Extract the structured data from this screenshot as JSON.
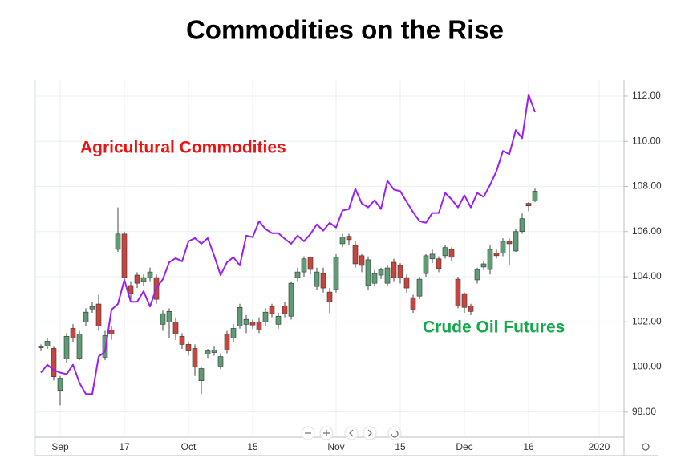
{
  "chart_data": {
    "type": "candlestick",
    "title": "Commodities on the Rise",
    "categories": [
      null,
      null,
      null,
      "Sep",
      null,
      null,
      null,
      null,
      null,
      null,
      null,
      null,
      null,
      "17",
      null,
      null,
      null,
      null,
      null,
      null,
      null,
      null,
      null,
      "Oct",
      null,
      null,
      null,
      null,
      null,
      null,
      null,
      null,
      null,
      "15",
      null,
      null,
      null,
      null,
      null,
      null,
      null,
      null,
      null,
      null,
      null,
      null,
      "Nov",
      null,
      null,
      null,
      null,
      null,
      null,
      null,
      null,
      null,
      "15",
      null,
      null,
      null,
      null,
      null,
      null,
      null,
      null,
      null,
      "Dec",
      null,
      null,
      null,
      null,
      null,
      null,
      null,
      null,
      null,
      "16",
      null,
      null,
      null,
      null,
      null,
      null,
      null,
      null,
      null,
      null,
      "2020"
    ],
    "ylim": [
      96.89,
      112.71
    ],
    "yticks": [
      {
        "value": 98,
        "label": "98.00"
      },
      {
        "value": 100,
        "label": "100.00"
      },
      {
        "value": 102,
        "label": "102.00"
      },
      {
        "value": 104,
        "label": "104.00"
      },
      {
        "value": 106,
        "label": "106.00"
      },
      {
        "value": 108,
        "label": "108.00"
      },
      {
        "value": 110,
        "label": "110.00"
      },
      {
        "value": 112,
        "label": "112.00"
      }
    ],
    "grid": true,
    "series": [
      {
        "name": "Agricultural Commodities",
        "type": "line",
        "color": "#9b1ff0",
        "label_color": "#ee1111",
        "values": [
          99.75,
          100.1,
          99.86,
          99.75,
          99.68,
          100.1,
          99.3,
          98.8,
          98.8,
          100.46,
          100.68,
          102.54,
          102.79,
          103.86,
          102.89,
          102.89,
          103.36,
          102.68,
          103.5,
          103.89,
          104.64,
          104.82,
          104.68,
          105.57,
          105.71,
          105.46,
          105.71,
          104.93,
          104.07,
          104.64,
          104.86,
          104.5,
          105.82,
          105.75,
          106.46,
          106.11,
          105.93,
          105.93,
          105.68,
          105.46,
          105.82,
          105.57,
          105.89,
          106.32,
          106.04,
          106.39,
          106.18,
          106.93,
          107.0,
          107.89,
          107.25,
          107.07,
          107.39,
          107.0,
          108.25,
          107.86,
          107.79,
          107.32,
          106.86,
          106.46,
          106.39,
          106.82,
          106.82,
          107.71,
          107.43,
          107.07,
          107.61,
          107.07,
          107.71,
          107.54,
          108.07,
          108.68,
          109.57,
          109.43,
          110.5,
          110.14,
          112.07,
          111.29,
          null,
          null,
          null,
          null,
          null,
          null,
          null,
          null,
          null,
          null
        ]
      },
      {
        "name": "Crude Oil Futures",
        "type": "candlestick",
        "up_color": "#5e9c76",
        "down_color": "#c8453f",
        "label_color": "#16a84c",
        "open": [
          100.86,
          100.93,
          100.82,
          98.96,
          100.36,
          101.71,
          100.39,
          102.0,
          102.57,
          102.79,
          100.43,
          101.64,
          105.21,
          105.89,
          103.61,
          104.07,
          103.79,
          103.96,
          103.96,
          101.89,
          102.0,
          102.0,
          101.36,
          101.0,
          100.82,
          99.39,
          100.57,
          100.64,
          100.04,
          101.46,
          101.29,
          101.82,
          101.89,
          102.0,
          102.0,
          102.0,
          102.68,
          101.89,
          102.71,
          102.25,
          103.96,
          104.21,
          104.86,
          103.57,
          104.14,
          103.32,
          103.43,
          105.46,
          105.79,
          105.39,
          104.93,
          103.61,
          103.71,
          104.07,
          103.71,
          104.64,
          104.5,
          103.96,
          103.07,
          103.14,
          104.14,
          104.79,
          104.79,
          104.93,
          105.21,
          103.89,
          103.25,
          102.71,
          103.86,
          104.43,
          104.32,
          105.04,
          105.04,
          105.57,
          105.14,
          106.0,
          107.25,
          107.36,
          null,
          null,
          null,
          null,
          null,
          null,
          null,
          null,
          null,
          null
        ],
        "high": [
          101.0,
          101.3,
          100.9,
          99.6,
          101.5,
          101.9,
          101.6,
          102.6,
          102.9,
          103.2,
          101.6,
          101.8,
          107.07,
          106.0,
          103.8,
          104.2,
          104.1,
          104.4,
          104.1,
          102.5,
          102.6,
          102.2,
          101.5,
          101.1,
          101.0,
          100.0,
          100.8,
          100.9,
          100.6,
          101.6,
          101.9,
          102.8,
          102.3,
          102.1,
          102.2,
          102.6,
          102.8,
          102.4,
          102.9,
          103.8,
          104.4,
          104.9,
          104.9,
          104.4,
          104.4,
          103.5,
          105.0,
          105.9,
          105.9,
          105.6,
          105.0,
          104.9,
          104.3,
          104.4,
          104.5,
          104.8,
          104.6,
          104.1,
          103.2,
          104.0,
          105.0,
          105.2,
          104.9,
          105.4,
          105.3,
          104.0,
          103.3,
          102.8,
          104.4,
          104.7,
          105.4,
          105.2,
          105.7,
          105.7,
          106.1,
          106.8,
          107.3,
          107.9,
          null,
          null,
          null,
          null,
          null,
          null,
          null,
          null,
          null,
          null
        ],
        "low": [
          100.7,
          100.8,
          99.4,
          98.3,
          100.2,
          101.1,
          100.3,
          101.8,
          102.4,
          101.6,
          100.3,
          101.2,
          105.1,
          103.8,
          103.0,
          103.5,
          103.6,
          103.8,
          102.8,
          101.6,
          101.3,
          101.2,
          100.8,
          100.5,
          99.6,
          98.8,
          100.4,
          100.5,
          99.9,
          100.6,
          101.1,
          101.7,
          101.5,
          101.7,
          101.5,
          101.8,
          102.2,
          101.7,
          102.2,
          102.1,
          103.8,
          104.0,
          104.1,
          103.4,
          103.3,
          102.4,
          103.3,
          105.3,
          105.4,
          104.4,
          104.2,
          103.4,
          103.6,
          103.9,
          103.6,
          103.8,
          103.7,
          103.3,
          102.4,
          103.0,
          104.0,
          104.6,
          104.2,
          104.8,
          104.7,
          102.6,
          102.4,
          102.3,
          103.7,
          104.3,
          104.1,
          104.8,
          104.9,
          104.5,
          105.1,
          105.9,
          106.9,
          107.3,
          null,
          null,
          null,
          null,
          null,
          null,
          null,
          null,
          null,
          null
        ],
        "close": [
          100.9,
          101.14,
          99.57,
          99.5,
          101.36,
          101.29,
          101.46,
          102.43,
          102.68,
          101.82,
          101.39,
          101.46,
          105.89,
          103.96,
          103.25,
          103.71,
          103.96,
          104.21,
          103.0,
          102.36,
          102.46,
          101.46,
          101.0,
          100.71,
          100.0,
          99.93,
          100.71,
          100.75,
          100.46,
          100.75,
          101.71,
          102.64,
          102.11,
          101.86,
          101.64,
          102.43,
          102.36,
          102.25,
          102.36,
          103.71,
          104.21,
          104.79,
          104.32,
          104.21,
          103.5,
          102.89,
          104.86,
          105.75,
          105.64,
          104.57,
          104.5,
          104.75,
          104.14,
          104.32,
          104.39,
          103.96,
          103.96,
          103.5,
          102.54,
          103.89,
          104.93,
          105.0,
          104.36,
          105.29,
          104.86,
          102.71,
          102.64,
          102.46,
          104.32,
          104.57,
          105.21,
          104.93,
          105.57,
          105.46,
          106.0,
          106.57,
          107.14,
          107.79,
          null,
          null,
          null,
          null,
          null,
          null,
          null,
          null,
          null,
          null
        ]
      }
    ]
  }
}
